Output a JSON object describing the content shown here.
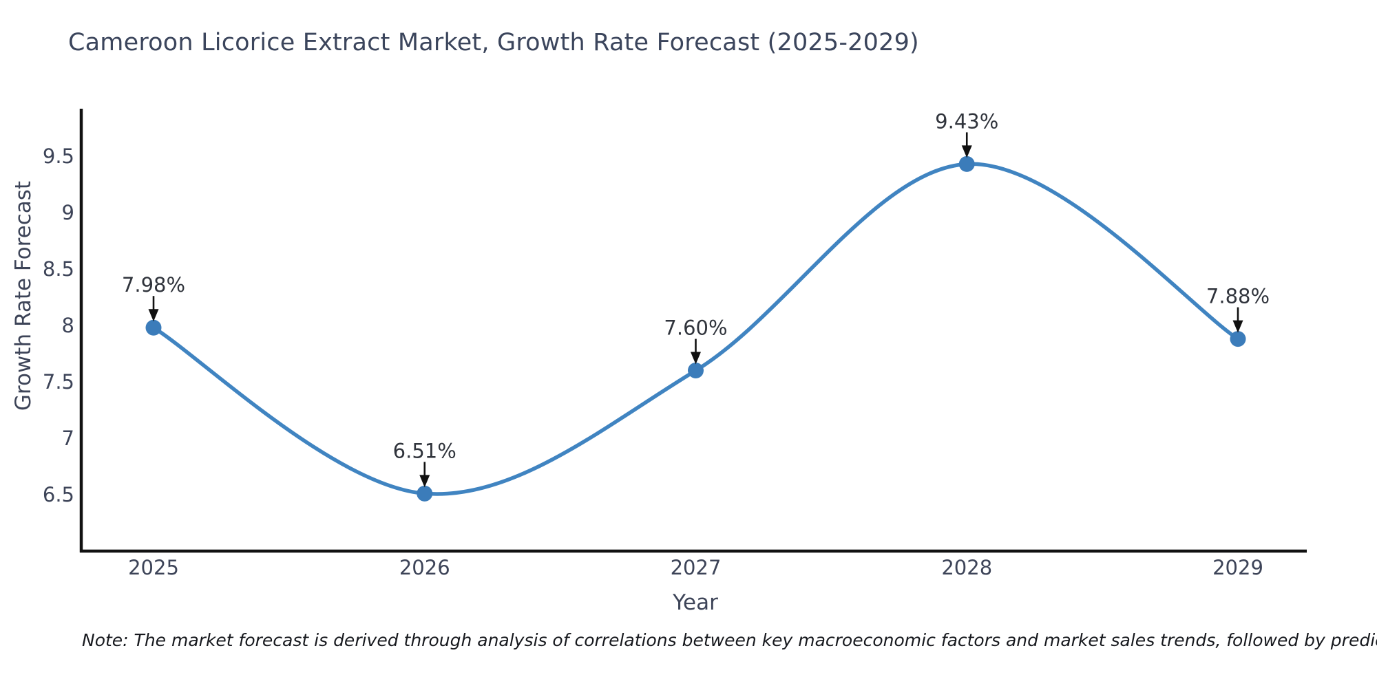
{
  "note": "Note: The market forecast is derived through analysis of correlations between key macroeconomic factors and market sales trends, followed by predictive modeling to project future sales",
  "chart_data": {
    "type": "line",
    "title": "Cameroon Licorice Extract Market, Growth Rate Forecast (2025-2029)",
    "xlabel": "Year",
    "ylabel": "Growth Rate Forecast",
    "categories": [
      "2025",
      "2026",
      "2027",
      "2028",
      "2029"
    ],
    "series": [
      {
        "name": "Growth Rate Forecast",
        "values": [
          7.98,
          6.51,
          7.6,
          9.43,
          7.88
        ]
      }
    ],
    "point_labels": [
      "7.98%",
      "6.51%",
      "7.60%",
      "9.43%",
      "7.88%"
    ],
    "yticks": [
      "6.5",
      "7",
      "7.5",
      "8",
      "8.5",
      "9",
      "9.5"
    ],
    "ylim": [
      6.0,
      9.92
    ],
    "grid": false,
    "legend": false,
    "curve": "spline",
    "colors": {
      "line": "#4084c1",
      "marker": "#3b7cba",
      "arrow": "#111111",
      "axis": "#111111",
      "tick_text": "#3d4458",
      "annotation_text": "#30343c"
    }
  }
}
